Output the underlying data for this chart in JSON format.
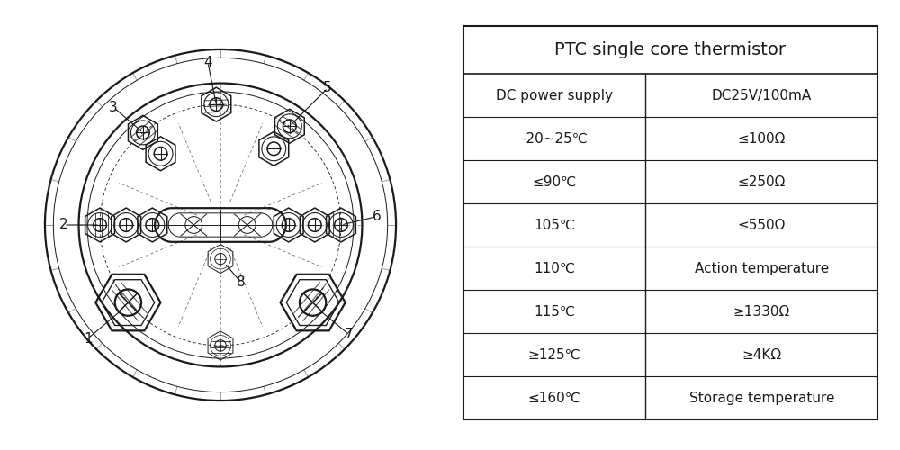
{
  "table_title": "PTC single core thermistor",
  "table_rows": [
    [
      "DC power supply",
      "DC25V/100mA"
    ],
    [
      "-20~25℃",
      "≤100Ω"
    ],
    [
      "≤90℃",
      "≤250Ω"
    ],
    [
      "105℃",
      "≤550Ω"
    ],
    [
      "110℃",
      "Action temperature"
    ],
    [
      "115℃",
      "≥1330Ω"
    ],
    [
      "≥125℃",
      "≥4KΩ"
    ],
    [
      "≤160℃",
      "Storage temperature"
    ]
  ],
  "bg_color": "#ffffff",
  "line_color": "#1a1a1a"
}
